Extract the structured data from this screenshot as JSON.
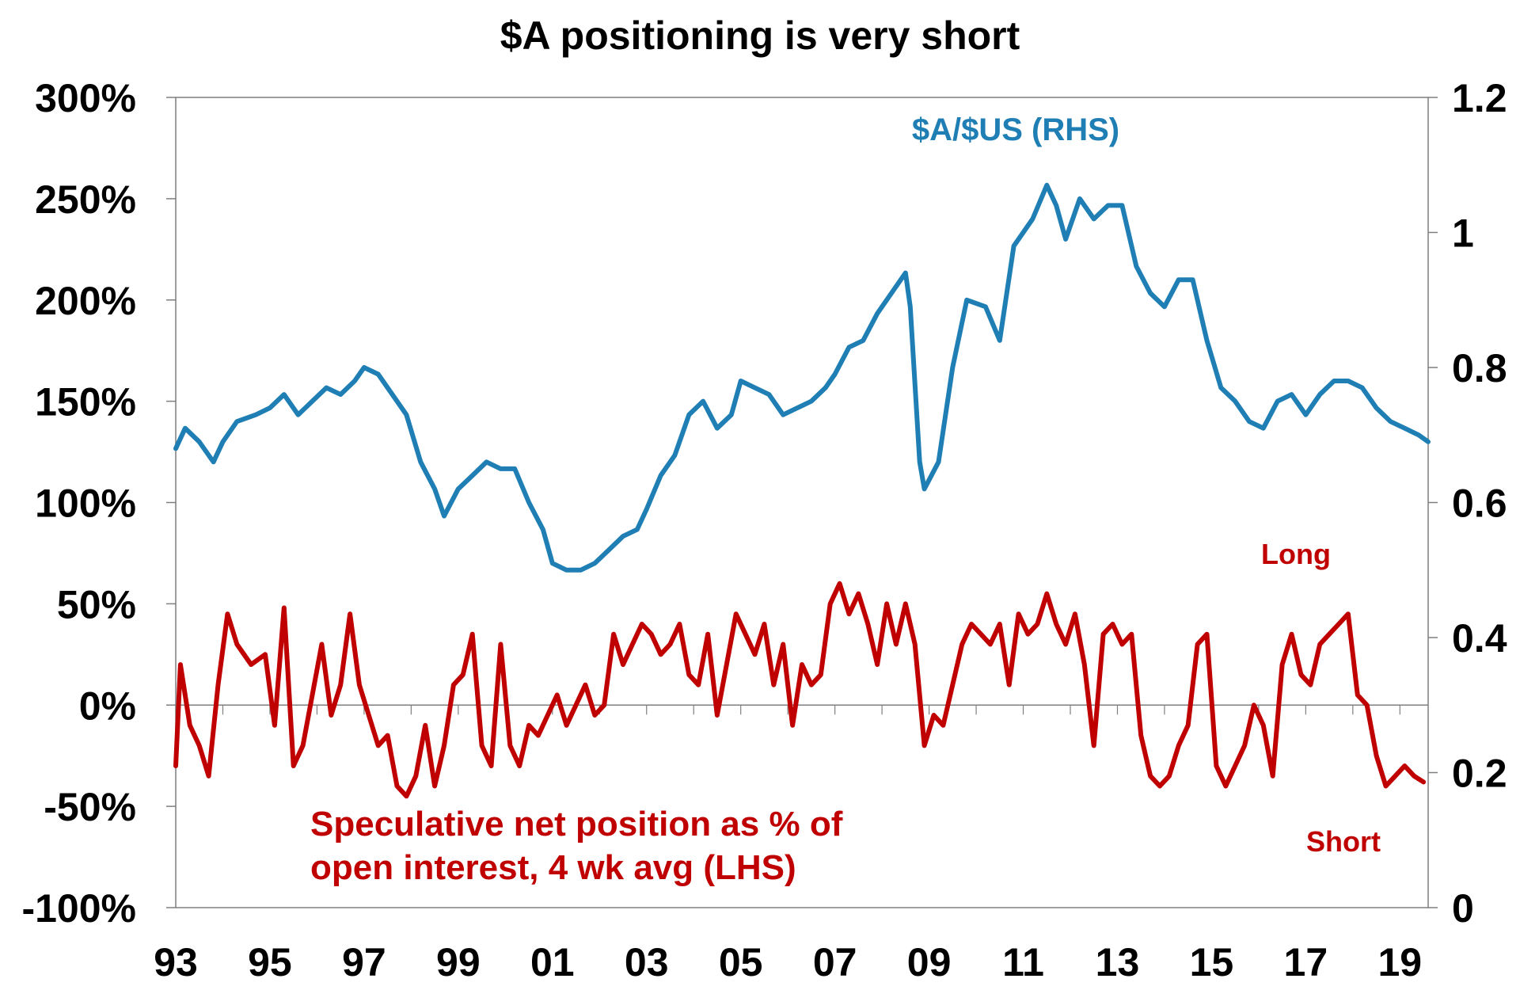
{
  "chart_data": {
    "type": "line",
    "title": "$A positioning is very short",
    "x_ticks": [
      "93",
      "95",
      "97",
      "99",
      "01",
      "03",
      "05",
      "07",
      "09",
      "11",
      "13",
      "15",
      "17",
      "19"
    ],
    "x_range": [
      1993.0,
      2019.6
    ],
    "y_left": {
      "ticks": [
        "300%",
        "250%",
        "200%",
        "150%",
        "100%",
        "50%",
        "0%",
        "-50%",
        "-100%"
      ],
      "range": [
        -100,
        300
      ]
    },
    "y_right": {
      "ticks": [
        "1.2",
        "1",
        "0.8",
        "0.6",
        "0.4",
        "0.2",
        "0"
      ],
      "range": [
        0,
        1.2
      ]
    },
    "annotations": {
      "long": "Long",
      "short": "Short"
    },
    "series": [
      {
        "name": "$A/$US (RHS)",
        "axis": "right",
        "color": "#1f7fb4",
        "points": [
          [
            1993.0,
            0.68
          ],
          [
            1993.2,
            0.71
          ],
          [
            1993.5,
            0.69
          ],
          [
            1993.8,
            0.66
          ],
          [
            1994.0,
            0.69
          ],
          [
            1994.3,
            0.72
          ],
          [
            1994.7,
            0.73
          ],
          [
            1995.0,
            0.74
          ],
          [
            1995.3,
            0.76
          ],
          [
            1995.6,
            0.73
          ],
          [
            1995.9,
            0.75
          ],
          [
            1996.2,
            0.77
          ],
          [
            1996.5,
            0.76
          ],
          [
            1996.8,
            0.78
          ],
          [
            1997.0,
            0.8
          ],
          [
            1997.3,
            0.79
          ],
          [
            1997.6,
            0.76
          ],
          [
            1997.9,
            0.73
          ],
          [
            1998.2,
            0.66
          ],
          [
            1998.5,
            0.62
          ],
          [
            1998.7,
            0.58
          ],
          [
            1999.0,
            0.62
          ],
          [
            1999.3,
            0.64
          ],
          [
            1999.6,
            0.66
          ],
          [
            1999.9,
            0.65
          ],
          [
            2000.2,
            0.65
          ],
          [
            2000.5,
            0.6
          ],
          [
            2000.8,
            0.56
          ],
          [
            2001.0,
            0.51
          ],
          [
            2001.3,
            0.5
          ],
          [
            2001.6,
            0.5
          ],
          [
            2001.9,
            0.51
          ],
          [
            2002.2,
            0.53
          ],
          [
            2002.5,
            0.55
          ],
          [
            2002.8,
            0.56
          ],
          [
            2003.0,
            0.59
          ],
          [
            2003.3,
            0.64
          ],
          [
            2003.6,
            0.67
          ],
          [
            2003.9,
            0.73
          ],
          [
            2004.2,
            0.75
          ],
          [
            2004.5,
            0.71
          ],
          [
            2004.8,
            0.73
          ],
          [
            2005.0,
            0.78
          ],
          [
            2005.3,
            0.77
          ],
          [
            2005.6,
            0.76
          ],
          [
            2005.9,
            0.73
          ],
          [
            2006.2,
            0.74
          ],
          [
            2006.5,
            0.75
          ],
          [
            2006.8,
            0.77
          ],
          [
            2007.0,
            0.79
          ],
          [
            2007.3,
            0.83
          ],
          [
            2007.6,
            0.84
          ],
          [
            2007.9,
            0.88
          ],
          [
            2008.2,
            0.91
          ],
          [
            2008.5,
            0.94
          ],
          [
            2008.6,
            0.89
          ],
          [
            2008.8,
            0.66
          ],
          [
            2008.9,
            0.62
          ],
          [
            2009.2,
            0.66
          ],
          [
            2009.5,
            0.8
          ],
          [
            2009.8,
            0.9
          ],
          [
            2010.2,
            0.89
          ],
          [
            2010.5,
            0.84
          ],
          [
            2010.8,
            0.98
          ],
          [
            2011.2,
            1.02
          ],
          [
            2011.5,
            1.07
          ],
          [
            2011.7,
            1.04
          ],
          [
            2011.9,
            0.99
          ],
          [
            2012.2,
            1.05
          ],
          [
            2012.5,
            1.02
          ],
          [
            2012.8,
            1.04
          ],
          [
            2013.1,
            1.04
          ],
          [
            2013.4,
            0.95
          ],
          [
            2013.7,
            0.91
          ],
          [
            2014.0,
            0.89
          ],
          [
            2014.3,
            0.93
          ],
          [
            2014.6,
            0.93
          ],
          [
            2014.9,
            0.84
          ],
          [
            2015.2,
            0.77
          ],
          [
            2015.5,
            0.75
          ],
          [
            2015.8,
            0.72
          ],
          [
            2016.1,
            0.71
          ],
          [
            2016.4,
            0.75
          ],
          [
            2016.7,
            0.76
          ],
          [
            2017.0,
            0.73
          ],
          [
            2017.3,
            0.76
          ],
          [
            2017.6,
            0.78
          ],
          [
            2017.9,
            0.78
          ],
          [
            2018.2,
            0.77
          ],
          [
            2018.5,
            0.74
          ],
          [
            2018.8,
            0.72
          ],
          [
            2019.1,
            0.71
          ],
          [
            2019.4,
            0.7
          ],
          [
            2019.6,
            0.69
          ]
        ]
      },
      {
        "name": "Speculative net position as % of open interest, 4 wk avg (LHS)",
        "axis": "left",
        "color": "#c00000",
        "points": [
          [
            1993.0,
            -30
          ],
          [
            1993.1,
            20
          ],
          [
            1993.3,
            -10
          ],
          [
            1993.5,
            -20
          ],
          [
            1993.7,
            -35
          ],
          [
            1993.9,
            10
          ],
          [
            1994.1,
            45
          ],
          [
            1994.3,
            30
          ],
          [
            1994.6,
            20
          ],
          [
            1994.9,
            25
          ],
          [
            1995.1,
            -10
          ],
          [
            1995.3,
            48
          ],
          [
            1995.5,
            -30
          ],
          [
            1995.7,
            -20
          ],
          [
            1995.9,
            5
          ],
          [
            1996.1,
            30
          ],
          [
            1996.3,
            -5
          ],
          [
            1996.5,
            10
          ],
          [
            1996.7,
            45
          ],
          [
            1996.9,
            10
          ],
          [
            1997.1,
            -5
          ],
          [
            1997.3,
            -20
          ],
          [
            1997.5,
            -15
          ],
          [
            1997.7,
            -40
          ],
          [
            1997.9,
            -45
          ],
          [
            1998.1,
            -35
          ],
          [
            1998.3,
            -10
          ],
          [
            1998.5,
            -40
          ],
          [
            1998.7,
            -20
          ],
          [
            1998.9,
            10
          ],
          [
            1999.1,
            15
          ],
          [
            1999.3,
            35
          ],
          [
            1999.5,
            -20
          ],
          [
            1999.7,
            -30
          ],
          [
            1999.9,
            30
          ],
          [
            2000.1,
            -20
          ],
          [
            2000.3,
            -30
          ],
          [
            2000.5,
            -10
          ],
          [
            2000.7,
            -15
          ],
          [
            2000.9,
            -5
          ],
          [
            2001.1,
            5
          ],
          [
            2001.3,
            -10
          ],
          [
            2001.5,
            0
          ],
          [
            2001.7,
            10
          ],
          [
            2001.9,
            -5
          ],
          [
            2002.1,
            0
          ],
          [
            2002.3,
            35
          ],
          [
            2002.5,
            20
          ],
          [
            2002.7,
            30
          ],
          [
            2002.9,
            40
          ],
          [
            2003.1,
            35
          ],
          [
            2003.3,
            25
          ],
          [
            2003.5,
            30
          ],
          [
            2003.7,
            40
          ],
          [
            2003.9,
            15
          ],
          [
            2004.1,
            10
          ],
          [
            2004.3,
            35
          ],
          [
            2004.5,
            -5
          ],
          [
            2004.7,
            20
          ],
          [
            2004.9,
            45
          ],
          [
            2005.1,
            35
          ],
          [
            2005.3,
            25
          ],
          [
            2005.5,
            40
          ],
          [
            2005.7,
            10
          ],
          [
            2005.9,
            30
          ],
          [
            2006.1,
            -10
          ],
          [
            2006.3,
            20
          ],
          [
            2006.5,
            10
          ],
          [
            2006.7,
            15
          ],
          [
            2006.9,
            50
          ],
          [
            2007.1,
            60
          ],
          [
            2007.3,
            45
          ],
          [
            2007.5,
            55
          ],
          [
            2007.7,
            40
          ],
          [
            2007.9,
            20
          ],
          [
            2008.1,
            50
          ],
          [
            2008.3,
            30
          ],
          [
            2008.5,
            50
          ],
          [
            2008.7,
            30
          ],
          [
            2008.9,
            -20
          ],
          [
            2009.1,
            -5
          ],
          [
            2009.3,
            -10
          ],
          [
            2009.5,
            10
          ],
          [
            2009.7,
            30
          ],
          [
            2009.9,
            40
          ],
          [
            2010.1,
            35
          ],
          [
            2010.3,
            30
          ],
          [
            2010.5,
            40
          ],
          [
            2010.7,
            10
          ],
          [
            2010.9,
            45
          ],
          [
            2011.1,
            35
          ],
          [
            2011.3,
            40
          ],
          [
            2011.5,
            55
          ],
          [
            2011.7,
            40
          ],
          [
            2011.9,
            30
          ],
          [
            2012.1,
            45
          ],
          [
            2012.3,
            20
          ],
          [
            2012.5,
            -20
          ],
          [
            2012.7,
            35
          ],
          [
            2012.9,
            40
          ],
          [
            2013.1,
            30
          ],
          [
            2013.3,
            35
          ],
          [
            2013.5,
            -15
          ],
          [
            2013.7,
            -35
          ],
          [
            2013.9,
            -40
          ],
          [
            2014.1,
            -35
          ],
          [
            2014.3,
            -20
          ],
          [
            2014.5,
            -10
          ],
          [
            2014.7,
            30
          ],
          [
            2014.9,
            35
          ],
          [
            2015.1,
            -30
          ],
          [
            2015.3,
            -40
          ],
          [
            2015.5,
            -30
          ],
          [
            2015.7,
            -20
          ],
          [
            2015.9,
            0
          ],
          [
            2016.1,
            -10
          ],
          [
            2016.3,
            -35
          ],
          [
            2016.5,
            20
          ],
          [
            2016.7,
            35
          ],
          [
            2016.9,
            15
          ],
          [
            2017.1,
            10
          ],
          [
            2017.3,
            30
          ],
          [
            2017.5,
            35
          ],
          [
            2017.7,
            40
          ],
          [
            2017.9,
            45
          ],
          [
            2018.1,
            5
          ],
          [
            2018.3,
            0
          ],
          [
            2018.5,
            -25
          ],
          [
            2018.7,
            -40
          ],
          [
            2018.9,
            -35
          ],
          [
            2019.1,
            -30
          ],
          [
            2019.3,
            -35
          ],
          [
            2019.5,
            -38
          ]
        ]
      }
    ]
  }
}
